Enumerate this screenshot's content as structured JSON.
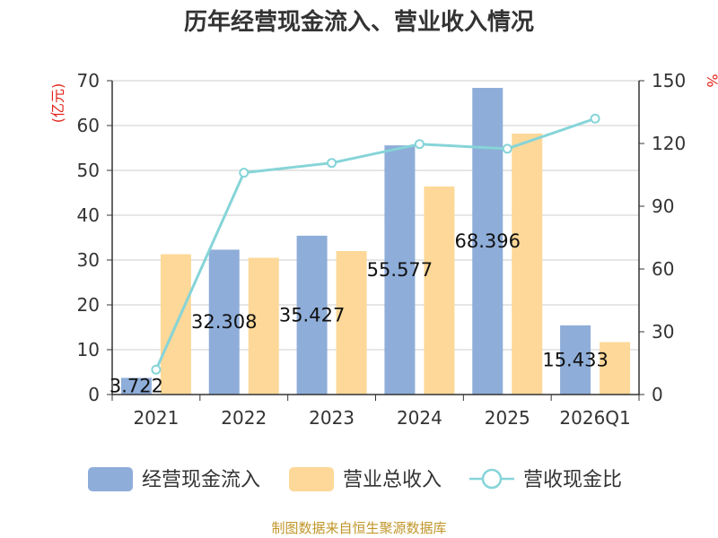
{
  "chart_data": {
    "type": "bar",
    "title": "历年经营现金流入、营业收入情况",
    "categories": [
      "2021",
      "2022",
      "2023",
      "2024",
      "2025",
      "2026Q1"
    ],
    "series": [
      {
        "name": "经营现金流入",
        "type": "bar",
        "axis": "left",
        "color": "#8eadd9",
        "values": [
          3.722,
          32.308,
          35.427,
          55.577,
          68.396,
          15.433
        ],
        "labels": [
          "3.722",
          "32.308",
          "35.427",
          "55.577",
          "68.396",
          "15.433"
        ]
      },
      {
        "name": "营业总收入",
        "type": "bar",
        "axis": "left",
        "color": "#fdd898",
        "values": [
          31.3,
          30.5,
          32.0,
          46.4,
          58.2,
          11.7
        ]
      },
      {
        "name": "营收现金比",
        "type": "line",
        "axis": "right",
        "color": "#86d4d8",
        "values": [
          11.9,
          106,
          110.7,
          119.7,
          117.5,
          131.9
        ]
      }
    ],
    "ylabel": "(亿元)",
    "y2label": "%",
    "ylim": [
      0,
      70
    ],
    "y2lim": [
      0,
      150
    ],
    "yticks": [
      0,
      10,
      20,
      30,
      40,
      50,
      60,
      70
    ],
    "y2ticks": [
      0,
      30,
      60,
      90,
      120,
      150
    ],
    "grid": true,
    "legend": "bottom",
    "source": "制图数据来自恒生聚源数据库"
  }
}
